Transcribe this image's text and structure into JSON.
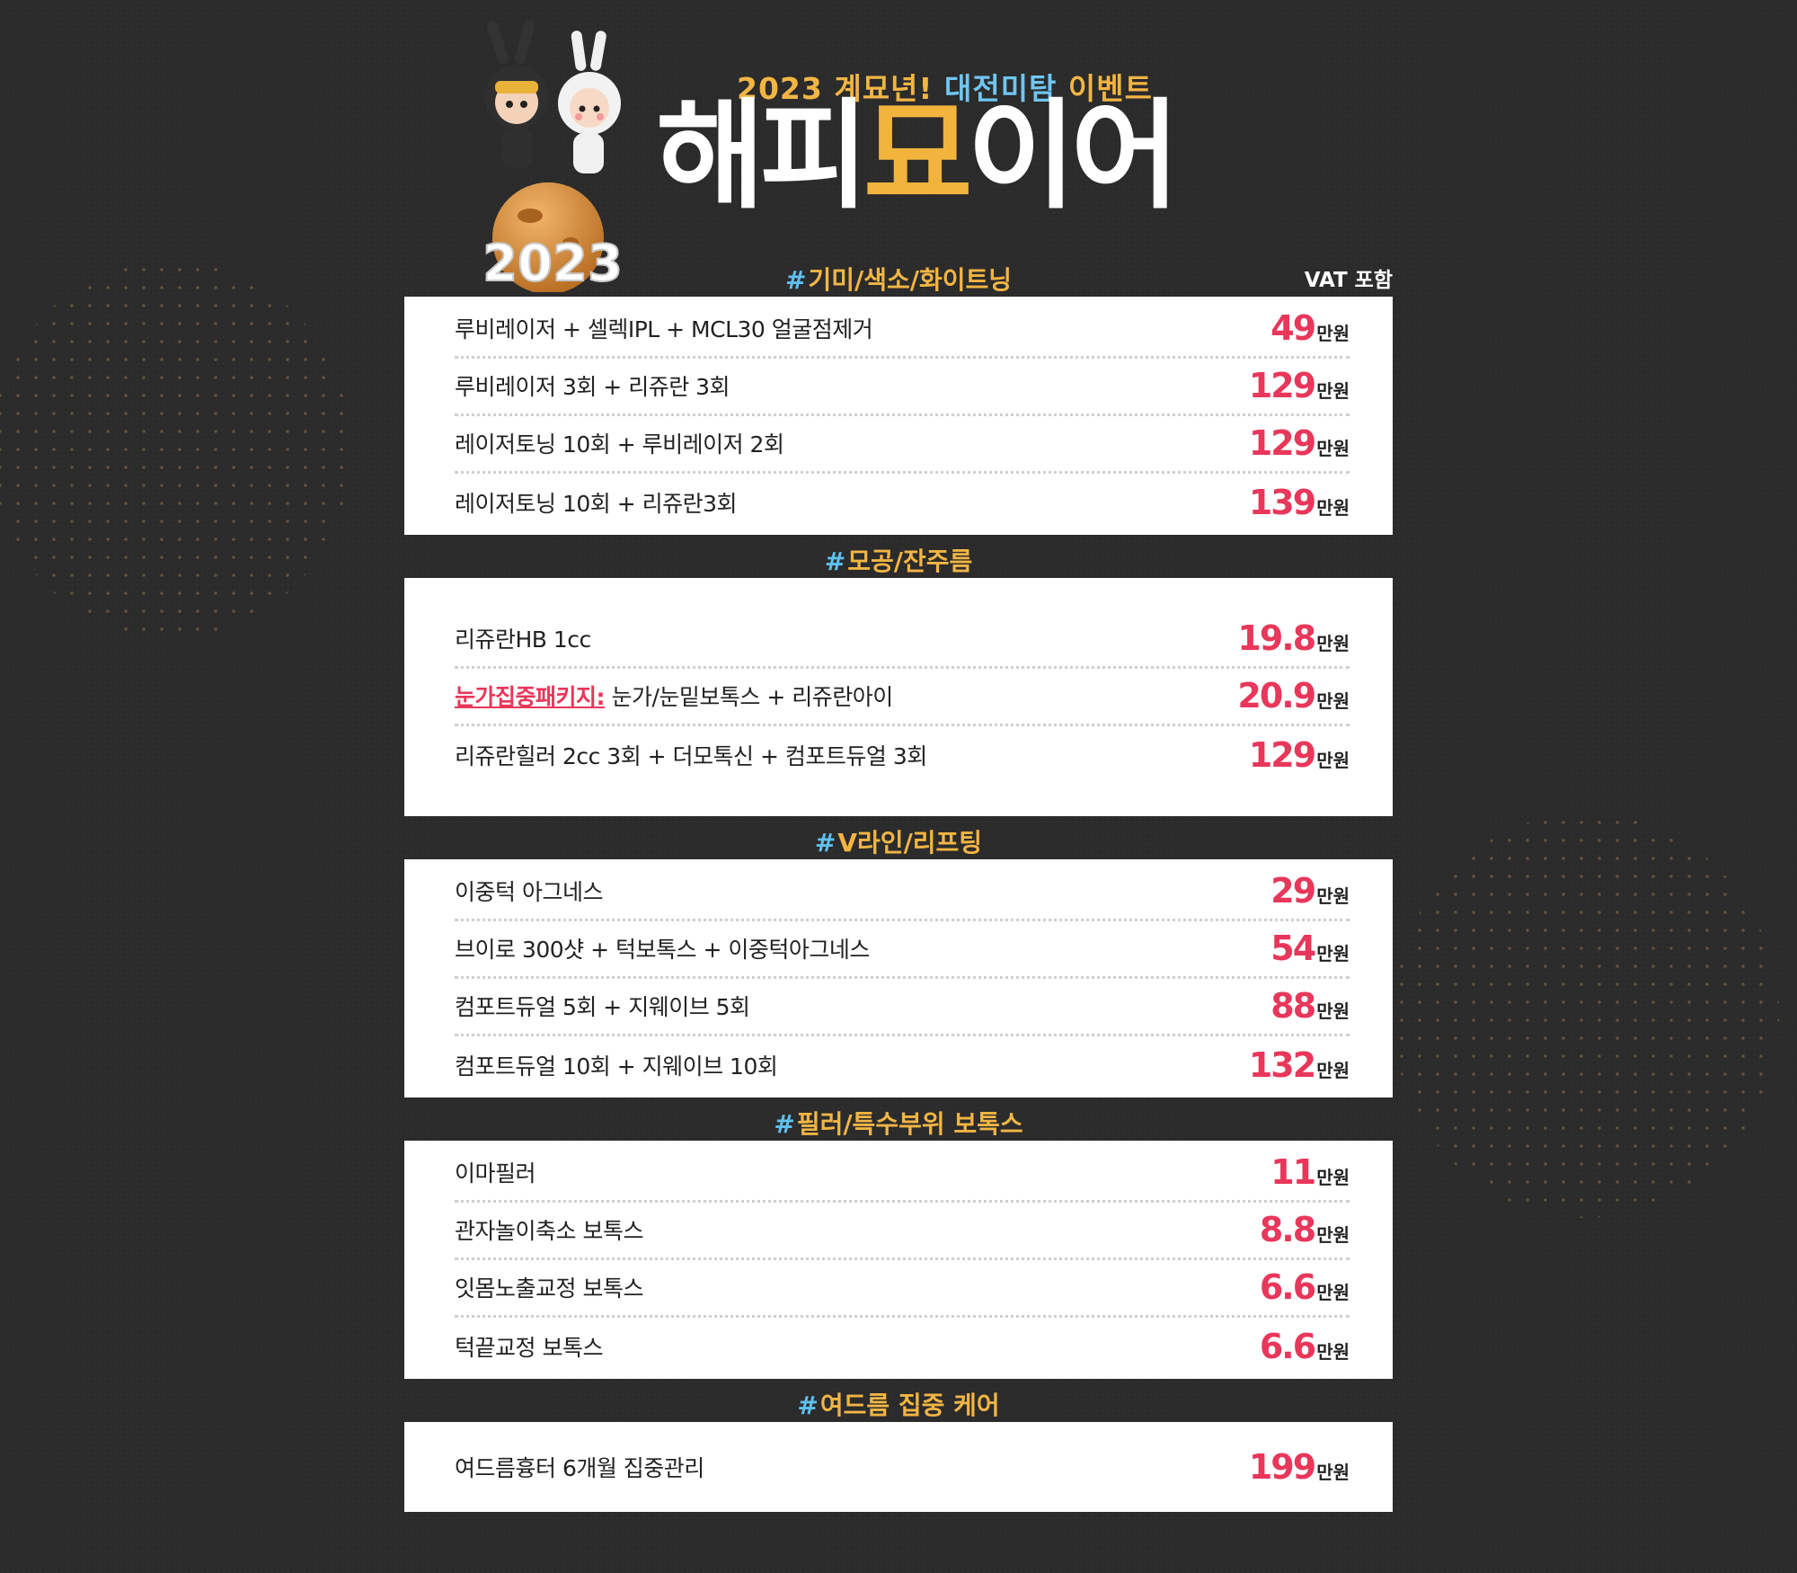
{
  "header": {
    "subtitle_prefix": "2023 계묘년!",
    "subtitle_highlight": "대전미탐",
    "subtitle_suffix": "이벤트",
    "title_part1": "해피",
    "title_accent": "묘",
    "title_part2": "이어",
    "mascot_year": "2023",
    "vat_note": "VAT 포함"
  },
  "price_unit": "만원",
  "hash_symbol": "#",
  "colors": {
    "background": "#2b2b2b",
    "section_label": "#f2b544",
    "hash": "#5fc0ef",
    "price": "#e8375a",
    "title_accent": "#f2b43c"
  },
  "sections": [
    {
      "label": "기미/색소/화이트닝",
      "items": [
        {
          "name": "루비레이저 + 셀렉IPL + MCL30 얼굴점제거",
          "price": "49"
        },
        {
          "name": "루비레이저 3회 + 리쥬란 3회",
          "price": "129"
        },
        {
          "name": "레이저토닝 10회 + 루비레이저 2회",
          "price": "129"
        },
        {
          "name": "레이저토닝 10회 + 리쥬란3회",
          "price": "139"
        }
      ]
    },
    {
      "label": "모공/잔주름",
      "items": [
        {
          "name": "리쥬란HB 1cc",
          "price": "19.8"
        },
        {
          "highlight": "눈가집중패키지:",
          "name": " 눈가/눈밑보톡스 + 리쥬란아이",
          "price": "20.9"
        },
        {
          "name": "리쥬란힐러 2cc 3회 + 더모톡신 + 컴포트듀얼 3회",
          "price": "129"
        }
      ]
    },
    {
      "label": "V라인/리프팅",
      "items": [
        {
          "name": "이중턱 아그네스",
          "price": "29"
        },
        {
          "name": "브이로 300샷 + 턱보톡스 + 이중턱아그네스",
          "price": "54"
        },
        {
          "name": "컴포트듀얼 5회 + 지웨이브 5회",
          "price": "88"
        },
        {
          "name": "컴포트듀얼 10회 + 지웨이브 10회",
          "price": "132"
        }
      ]
    },
    {
      "label": "필러/특수부위 보톡스",
      "items": [
        {
          "name": "이마필러",
          "price": "11"
        },
        {
          "name": "관자놀이축소 보톡스",
          "price": "8.8"
        },
        {
          "name": "잇몸노출교정 보톡스",
          "price": "6.6"
        },
        {
          "name": "턱끝교정 보톡스",
          "price": "6.6"
        }
      ]
    },
    {
      "label": "여드름 집중 케어",
      "items": [
        {
          "name": "여드름흉터 6개월 집중관리",
          "price": "199"
        }
      ]
    }
  ]
}
